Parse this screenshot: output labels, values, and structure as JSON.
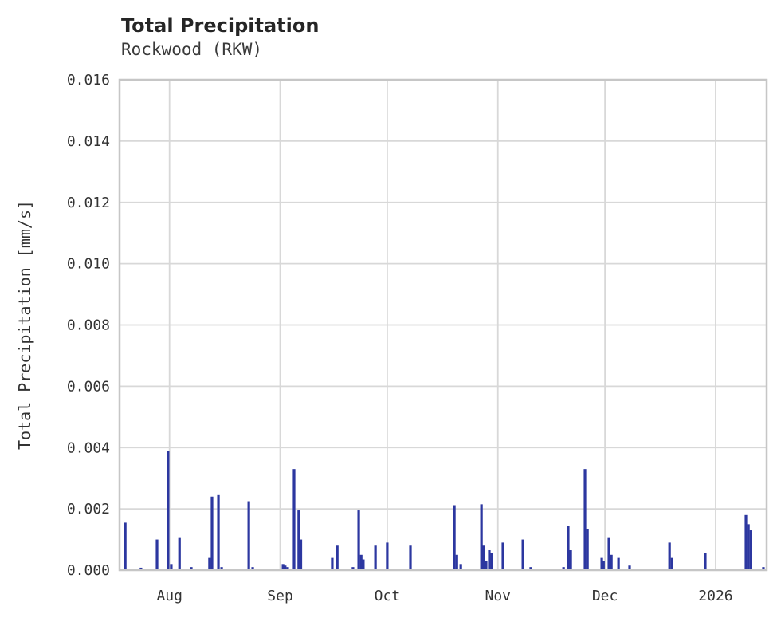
{
  "header": {
    "title": "Total Precipitation",
    "subtitle": "Rockwood (RKW)"
  },
  "chart_data": {
    "type": "bar",
    "title": "Total Precipitation",
    "subtitle": "Rockwood (RKW)",
    "xlabel": "",
    "ylabel": "Total Precipitation [mm/s]",
    "ylim": [
      0,
      0.016
    ],
    "grid": true,
    "legend_position": "none",
    "x_domain": {
      "start": "2025-07-18",
      "end": "2026-01-15",
      "days_span": 181.3
    },
    "xticks": [
      {
        "label": "Aug",
        "day": 14
      },
      {
        "label": "Sep",
        "day": 45
      },
      {
        "label": "Oct",
        "day": 75
      },
      {
        "label": "Nov",
        "day": 106
      },
      {
        "label": "Dec",
        "day": 136
      },
      {
        "label": "2026",
        "day": 167
      }
    ],
    "yticks": [
      {
        "label": "0.000",
        "value": 0.0
      },
      {
        "label": "0.002",
        "value": 0.002
      },
      {
        "label": "0.004",
        "value": 0.004
      },
      {
        "label": "0.006",
        "value": 0.006
      },
      {
        "label": "0.008",
        "value": 0.008
      },
      {
        "label": "0.010",
        "value": 0.01
      },
      {
        "label": "0.012",
        "value": 0.012
      },
      {
        "label": "0.014",
        "value": 0.014
      },
      {
        "label": "0.016",
        "value": 0.016
      }
    ],
    "series_name": "Total Precipitation [mm/s]",
    "points": [
      {
        "day": 1.6,
        "value": 0.00155
      },
      {
        "day": 6.0,
        "value": 8e-05
      },
      {
        "day": 10.5,
        "value": 0.001
      },
      {
        "day": 13.6,
        "value": 0.0039
      },
      {
        "day": 14.5,
        "value": 0.0002
      },
      {
        "day": 16.8,
        "value": 0.00105
      },
      {
        "day": 20.1,
        "value": 0.0001
      },
      {
        "day": 25.2,
        "value": 0.0004
      },
      {
        "day": 25.9,
        "value": 0.0024
      },
      {
        "day": 27.7,
        "value": 0.00245
      },
      {
        "day": 28.6,
        "value": 0.0001
      },
      {
        "day": 36.2,
        "value": 0.00225
      },
      {
        "day": 37.3,
        "value": 0.0001
      },
      {
        "day": 45.8,
        "value": 0.0002
      },
      {
        "day": 46.4,
        "value": 0.00015
      },
      {
        "day": 47.1,
        "value": 0.0001
      },
      {
        "day": 48.9,
        "value": 0.0033
      },
      {
        "day": 50.2,
        "value": 0.00195
      },
      {
        "day": 50.8,
        "value": 0.001
      },
      {
        "day": 59.6,
        "value": 0.0004
      },
      {
        "day": 61.0,
        "value": 0.0008
      },
      {
        "day": 65.4,
        "value": 0.0001
      },
      {
        "day": 67.0,
        "value": 0.00195
      },
      {
        "day": 67.7,
        "value": 0.0005
      },
      {
        "day": 68.3,
        "value": 0.00035
      },
      {
        "day": 71.7,
        "value": 0.0008
      },
      {
        "day": 75.0,
        "value": 0.0009
      },
      {
        "day": 81.5,
        "value": 0.0008
      },
      {
        "day": 93.8,
        "value": 0.00212
      },
      {
        "day": 94.5,
        "value": 0.0005
      },
      {
        "day": 95.6,
        "value": 0.0002
      },
      {
        "day": 101.4,
        "value": 0.00215
      },
      {
        "day": 102.0,
        "value": 0.0008
      },
      {
        "day": 102.7,
        "value": 0.0003
      },
      {
        "day": 103.6,
        "value": 0.00065
      },
      {
        "day": 104.3,
        "value": 0.00055
      },
      {
        "day": 107.4,
        "value": 0.0009
      },
      {
        "day": 113.0,
        "value": 0.001
      },
      {
        "day": 115.2,
        "value": 0.0001
      },
      {
        "day": 124.4,
        "value": 0.0001
      },
      {
        "day": 125.7,
        "value": 0.00145
      },
      {
        "day": 126.4,
        "value": 0.00065
      },
      {
        "day": 130.4,
        "value": 0.0033
      },
      {
        "day": 131.1,
        "value": 0.00133
      },
      {
        "day": 135.1,
        "value": 0.0004
      },
      {
        "day": 135.6,
        "value": 0.0003
      },
      {
        "day": 137.1,
        "value": 0.00105
      },
      {
        "day": 137.8,
        "value": 0.0005
      },
      {
        "day": 139.8,
        "value": 0.0004
      },
      {
        "day": 142.9,
        "value": 0.00015
      },
      {
        "day": 154.1,
        "value": 0.0009
      },
      {
        "day": 154.8,
        "value": 0.0004
      },
      {
        "day": 164.1,
        "value": 0.00055
      },
      {
        "day": 175.5,
        "value": 0.0018
      },
      {
        "day": 176.2,
        "value": 0.0015
      },
      {
        "day": 176.9,
        "value": 0.0013
      },
      {
        "day": 180.4,
        "value": 0.0001
      }
    ]
  },
  "colors": {
    "bar": "#2c37a0",
    "grid": "#d8d8d8",
    "spine": "#c6c6c6",
    "text": "#333333",
    "title": "#252525",
    "subtitle": "#3a3a3a",
    "background": "#ffffff"
  }
}
